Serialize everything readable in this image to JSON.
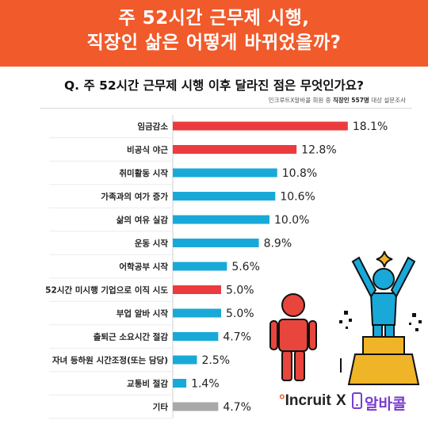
{
  "header": {
    "title_line1": "주 52시간 근무제 시행,",
    "title_line2": "직장인 삶은 어떻게 바뀌었을까?"
  },
  "question": "Q. 주 52시간 근무제 시행 이후 달라진 점은 무엇인가요?",
  "source": {
    "prefix": "인크루트X알바콜 회원 중 ",
    "bold": "직장인 557명",
    "suffix": " 대상 설문조사"
  },
  "colors": {
    "red": "#ec3b3e",
    "blue": "#19a9d8",
    "gray": "#a8a8a8",
    "header": "#f15a2a"
  },
  "chart_data": {
    "type": "bar",
    "orientation": "horizontal",
    "categories": [
      "임금감소",
      "비공식 야근",
      "취미활동 시작",
      "가족과의 여가 증가",
      "삶의 여유 실감",
      "운동 시작",
      "어학공부 시작",
      "52시간 미시행 기업으로 이직 시도",
      "부업 알바 시작",
      "출퇴근 소요시간 절감",
      "자녀 등하원 시간조정(또는 담당)",
      "교통비 절감",
      "기타"
    ],
    "values": [
      18.1,
      12.8,
      10.8,
      10.6,
      10.0,
      8.9,
      5.6,
      5.0,
      5.0,
      4.7,
      2.5,
      1.4,
      4.7
    ],
    "value_labels": [
      "18.1%",
      "12.8%",
      "10.8%",
      "10.6%",
      "10.0%",
      "8.9%",
      "5.6%",
      "5.0%",
      "5.0%",
      "4.7%",
      "2.5%",
      "1.4%",
      "4.7%"
    ],
    "bar_colors": [
      "red",
      "red",
      "blue",
      "blue",
      "blue",
      "blue",
      "blue",
      "red",
      "blue",
      "blue",
      "blue",
      "blue",
      "gray"
    ],
    "unit": "%"
  },
  "logos": {
    "incruit_dot": "°",
    "incruit_text": "Incruit",
    "x": "X",
    "albacall": "알바콜"
  },
  "icons": [
    "person-icon",
    "celebrating-person-on-podium-icon",
    "sparkle-icon",
    "phone-icon"
  ]
}
